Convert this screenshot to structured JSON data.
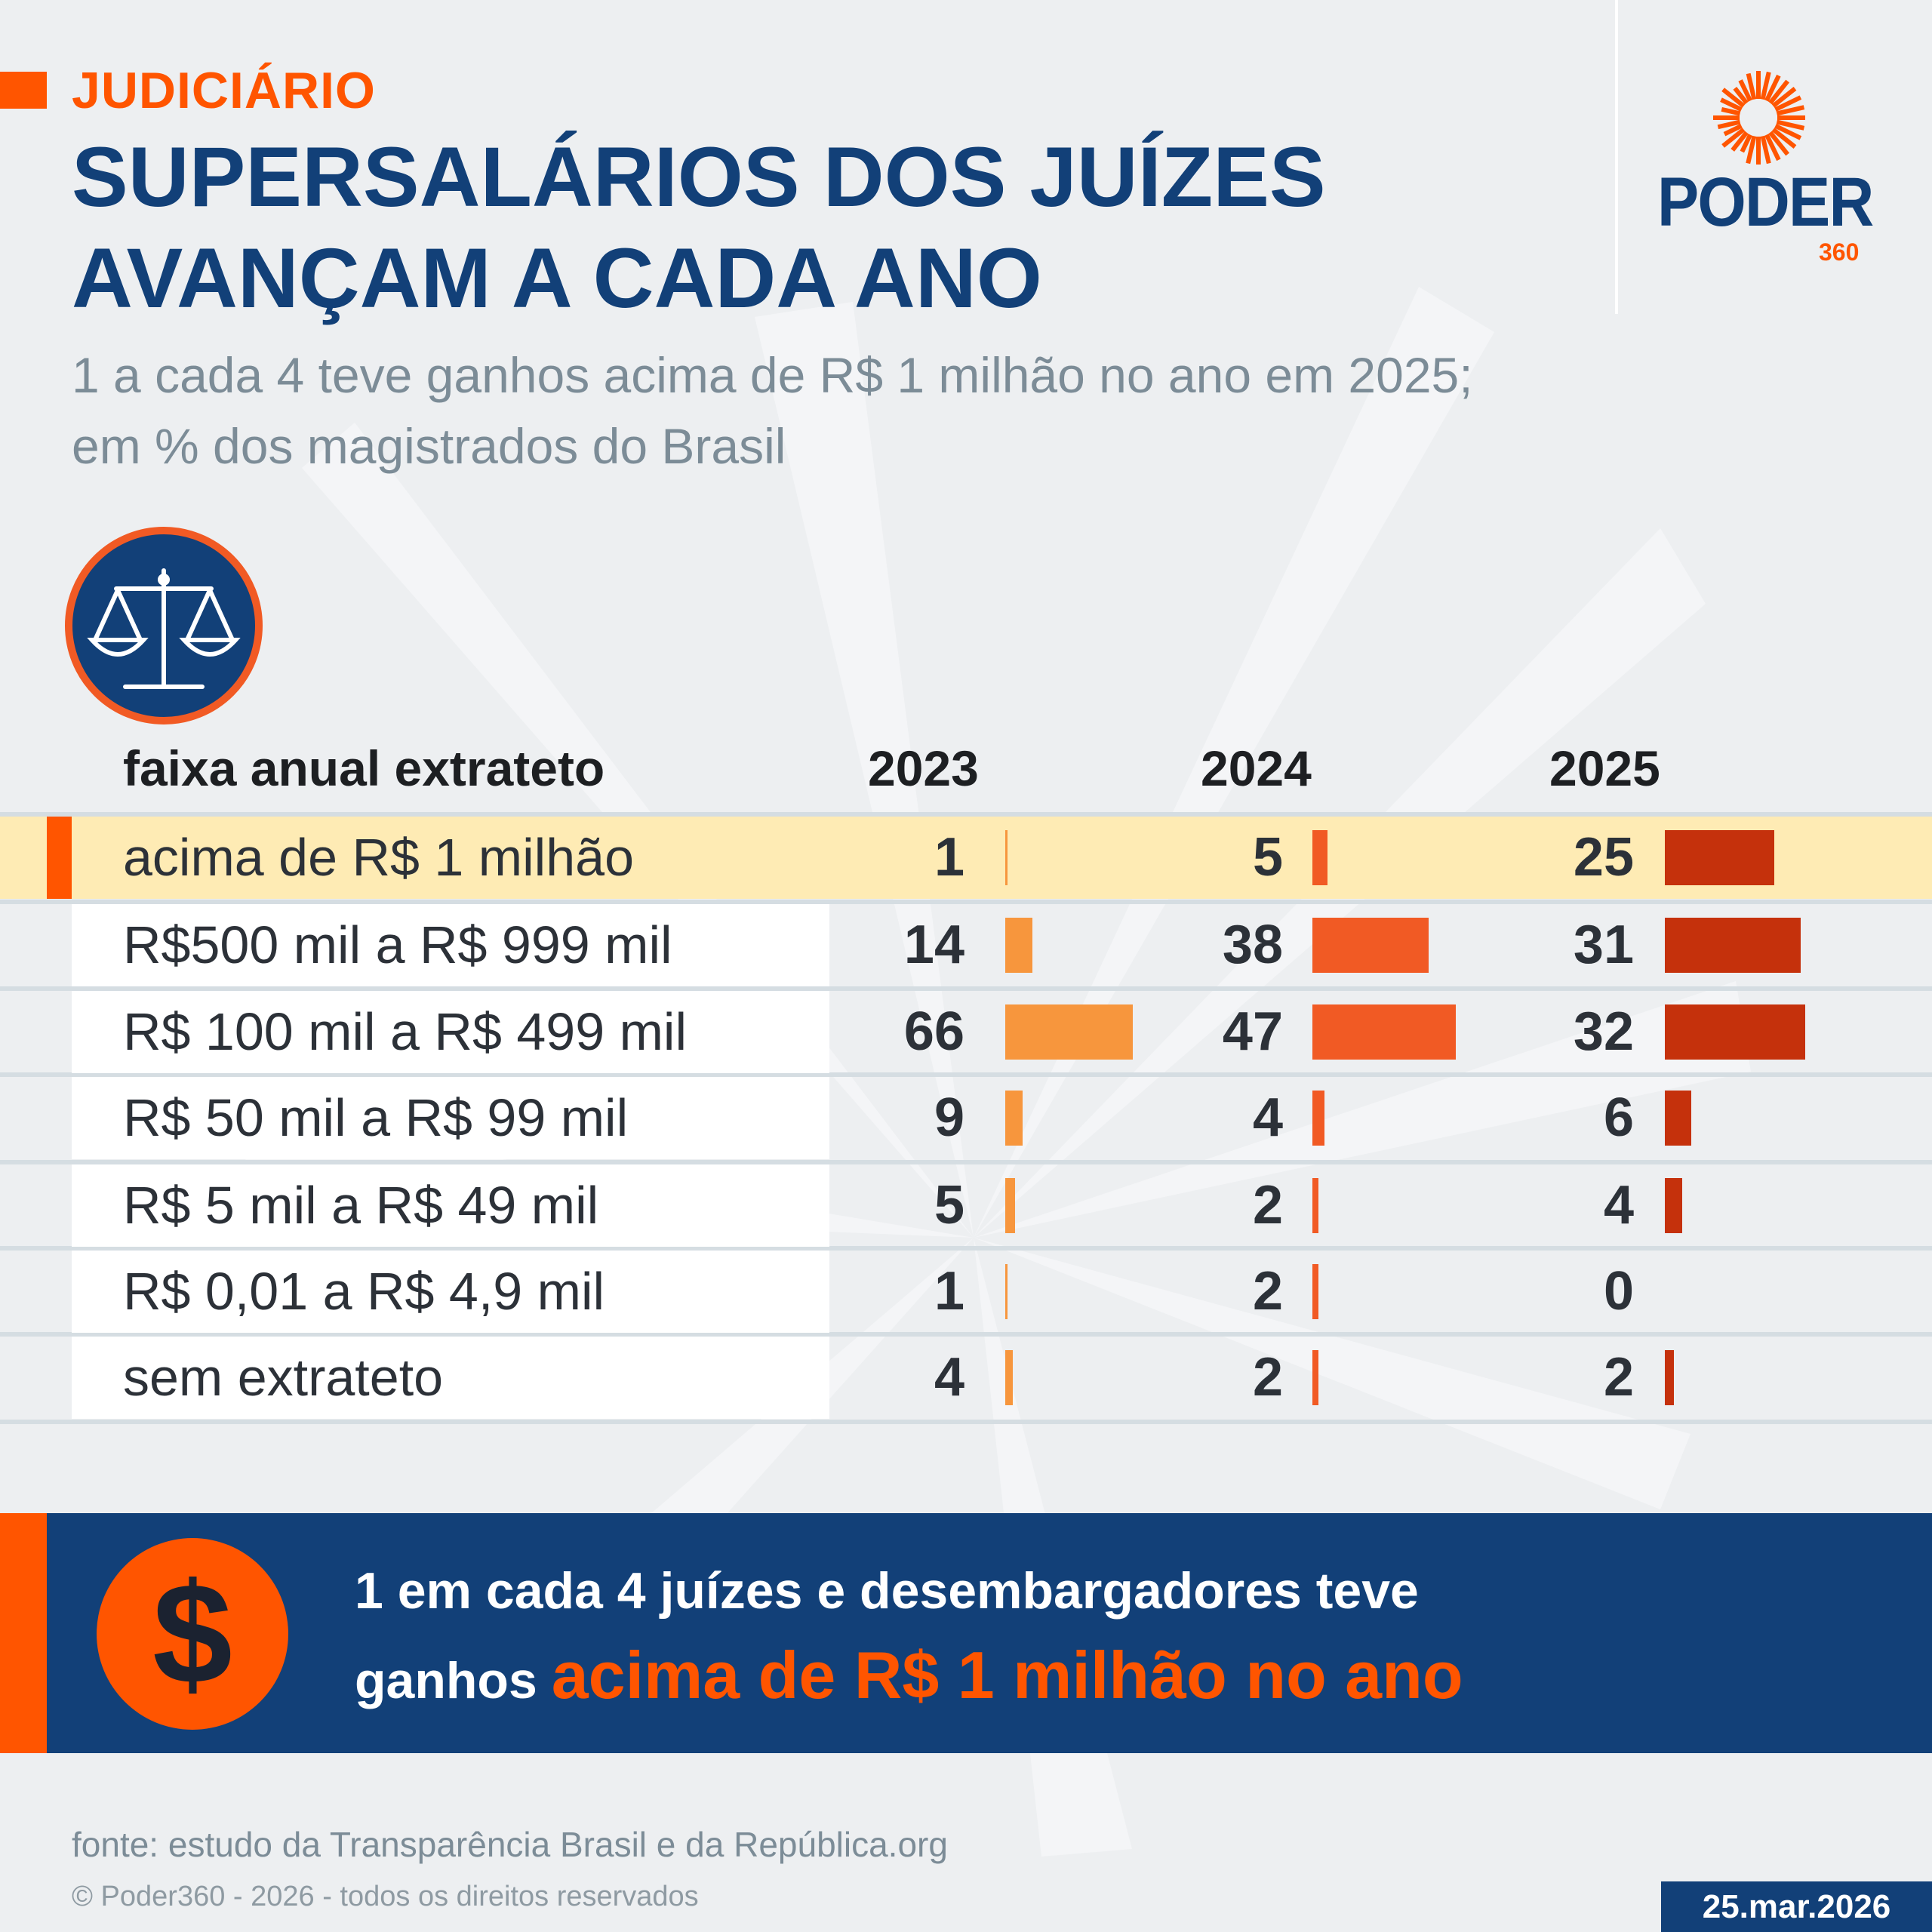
{
  "header": {
    "kicker": "JUDICIÁRIO",
    "title": "SUPERSALÁRIOS DOS JUÍZES AVANÇAM A CADA ANO",
    "subtitle": "1 a cada 4 teve ganhos acima de R$ 1 milhão no ano em 2025; em % dos magistrados do Brasil"
  },
  "logo": {
    "name": "PODER",
    "suffix": "360"
  },
  "icons": {
    "category": "scales-of-justice-icon",
    "banner": "dollar-icon"
  },
  "colors": {
    "accent": "#ff5500",
    "navy": "#124078",
    "highlight": "#feebb4",
    "bar_2023": "#f7963d",
    "bar_2024": "#f15a24",
    "bar_2025": "#c5310c"
  },
  "table": {
    "column_label": "faixa anual extrateto",
    "years": [
      "2023",
      "2024",
      "2025"
    ],
    "rows": [
      {
        "label": "acima de R$ 1 milhão",
        "values": [
          1,
          5,
          25
        ],
        "highlight": true
      },
      {
        "label": "R$500 mil a R$ 999 mil",
        "values": [
          14,
          38,
          31
        ]
      },
      {
        "label": "R$ 100 mil a R$ 499 mil",
        "values": [
          66,
          47,
          32
        ]
      },
      {
        "label": "R$ 50 mil a R$ 99 mil",
        "values": [
          9,
          4,
          6
        ]
      },
      {
        "label": "R$ 5 mil a R$ 49 mil",
        "values": [
          5,
          2,
          4
        ]
      },
      {
        "label": "R$ 0,01 a R$ 4,9 mil",
        "values": [
          1,
          2,
          0
        ]
      },
      {
        "label": "sem extrateto",
        "values": [
          4,
          2,
          2
        ]
      }
    ]
  },
  "banner": {
    "dollar": "$",
    "line1": "1 em cada 4 juízes e desembargadores teve",
    "line2_prefix": "ganhos",
    "line2_highlight": "acima de R$ 1 milhão no ano"
  },
  "footer": {
    "source": "fonte: estudo da Transparência Brasil e da República.org",
    "copyright": "© Poder360 - 2026 - todos os direitos reservados",
    "date": "25.mar.2026"
  }
}
